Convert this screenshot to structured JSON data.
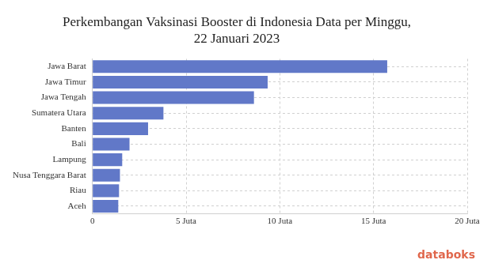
{
  "chart_data": {
    "type": "bar",
    "orientation": "horizontal",
    "title": [
      "Perkembangan Vaksinasi Booster di Indonesia Data per Minggu,",
      "22 Januari 2023"
    ],
    "categories": [
      "Jawa Barat",
      "Jawa Timur",
      "Jawa Tengah",
      "Sumatera Utara",
      "Banten",
      "Bali",
      "Lampung",
      "Nusa Tenggara Barat",
      "Riau",
      "Aceh"
    ],
    "values": [
      15.73,
      9.35,
      8.62,
      3.79,
      2.97,
      1.98,
      1.59,
      1.47,
      1.42,
      1.38
    ],
    "color": "#6178c8",
    "xlim": [
      0,
      20
    ],
    "xticks": [
      0,
      {
        "value": 5,
        "label": "5 Juta"
      },
      {
        "value": 10,
        "label": "10 Juta"
      },
      {
        "value": 15,
        "label": "15 Juta"
      },
      {
        "value": 20,
        "label": "20 Juta"
      }
    ],
    "grid": true,
    "annotations": [
      "databoks"
    ]
  }
}
